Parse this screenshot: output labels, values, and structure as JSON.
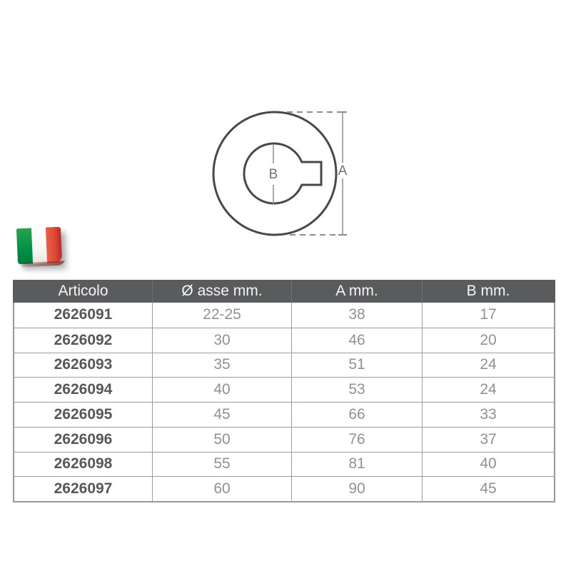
{
  "diagram": {
    "label_a": "A",
    "label_b": "B",
    "outline_color": "#46494c",
    "thin_line_color": "#8a8d8f"
  },
  "flag": {
    "country": "Italy",
    "green": "#009246",
    "white": "#f4f5f0",
    "red": "#ce2b37"
  },
  "table": {
    "header_bg": "#595b5d",
    "header_text_color": "#f5f5f5",
    "article_color": "#55585a",
    "value_color": "#8f9295",
    "grid_color": "#9b9ea0",
    "headers": [
      "Articolo",
      "Ø asse mm.",
      "A mm.",
      "B mm."
    ],
    "rows": [
      [
        "2626091",
        "22-25",
        "38",
        "17"
      ],
      [
        "2626092",
        "30",
        "46",
        "20"
      ],
      [
        "2626093",
        "35",
        "51",
        "24"
      ],
      [
        "2626094",
        "40",
        "53",
        "24"
      ],
      [
        "2626095",
        "45",
        "66",
        "33"
      ],
      [
        "2626096",
        "50",
        "76",
        "37"
      ],
      [
        "2626098",
        "55",
        "81",
        "40"
      ],
      [
        "2626097",
        "60",
        "90",
        "45"
      ]
    ]
  }
}
